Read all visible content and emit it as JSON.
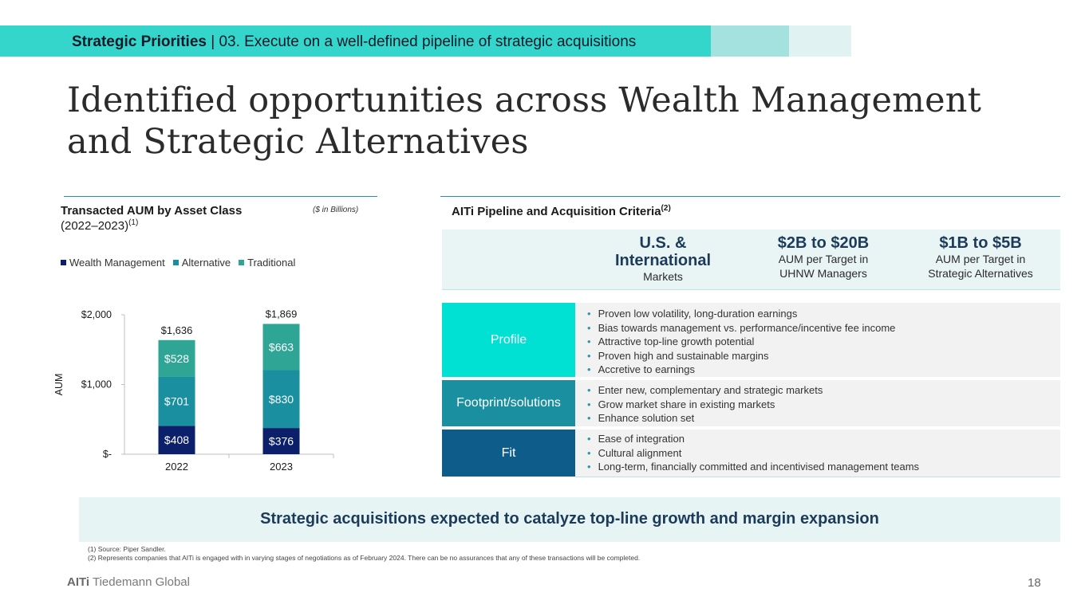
{
  "banner": {
    "bold": "Strategic Priorities",
    "rest": " | 03. Execute on a well-defined pipeline of strategic acquisitions"
  },
  "title": "Identified opportunities across Wealth Management and Strategic Alternatives",
  "chart": {
    "title": "Transacted AUM by Asset Class",
    "subtitle": "(2022–2023)",
    "subtitle_sup": "(1)",
    "unit_note": "($ in Billions)",
    "legend": [
      "Wealth Management",
      "Alternative",
      "Traditional"
    ]
  },
  "chart_data": {
    "type": "bar",
    "stacked": true,
    "categories": [
      "2022",
      "2023"
    ],
    "series": [
      {
        "name": "Wealth Management",
        "values": [
          408,
          376
        ],
        "labels": [
          "$408",
          "$376"
        ],
        "color": "#0b1f6b"
      },
      {
        "name": "Alternative",
        "values": [
          701,
          830
        ],
        "labels": [
          "$701",
          "$830"
        ],
        "color": "#1a8fa0"
      },
      {
        "name": "Traditional",
        "values": [
          528,
          663
        ],
        "labels": [
          "$528",
          "$663"
        ],
        "color": "#2fa596"
      }
    ],
    "totals": [
      "$1,636",
      "$1,869"
    ],
    "total_values": [
      1636,
      1869
    ],
    "ylabel": "AUM",
    "yticks": [
      0,
      1000,
      2000
    ],
    "ytick_labels": [
      "$-",
      "$1,000",
      "$2,000"
    ],
    "ylim": [
      0,
      2000
    ]
  },
  "pipeline": {
    "title": "AITi Pipeline and Acquisition Criteria",
    "title_sup": "(2)",
    "criteria": [
      {
        "big": "U.S. & International",
        "small": "Markets"
      },
      {
        "big": "$2B to $20B",
        "small": "AUM per Target in UHNW Managers"
      },
      {
        "big": "$1B to $5B",
        "small": "AUM per Target in Strategic Alternatives"
      }
    ],
    "rows": [
      {
        "label": "Profile",
        "color": "#00e0d3",
        "items": [
          "Proven low volatility, long-duration earnings",
          "Bias towards management vs. performance/incentive fee income",
          "Attractive top-line growth potential",
          "Proven high and sustainable margins",
          "Accretive to earnings"
        ]
      },
      {
        "label": "Footprint/solutions",
        "color": "#1a8fa0",
        "items": [
          "Enter new, complementary and strategic markets",
          "Grow market share in existing markets",
          "Enhance solution set"
        ]
      },
      {
        "label": "Fit",
        "color": "#0d5c8a",
        "items": [
          "Ease of integration",
          "Cultural alignment",
          "Long-term, financially committed and incentivised management teams"
        ]
      }
    ]
  },
  "takeaway": "Strategic acquisitions expected to catalyze top-line growth and margin expansion",
  "footnotes": [
    "(1) Source: Piper Sandler.",
    "(2) Represents companies that AITi is engaged with in varying stages of negotiations as of February 2024. There can be no assurances that any of these transactions will be completed."
  ],
  "footer": {
    "logo_bold": "AITi",
    "logo_rest": " Tiedemann Global",
    "page": "18"
  }
}
